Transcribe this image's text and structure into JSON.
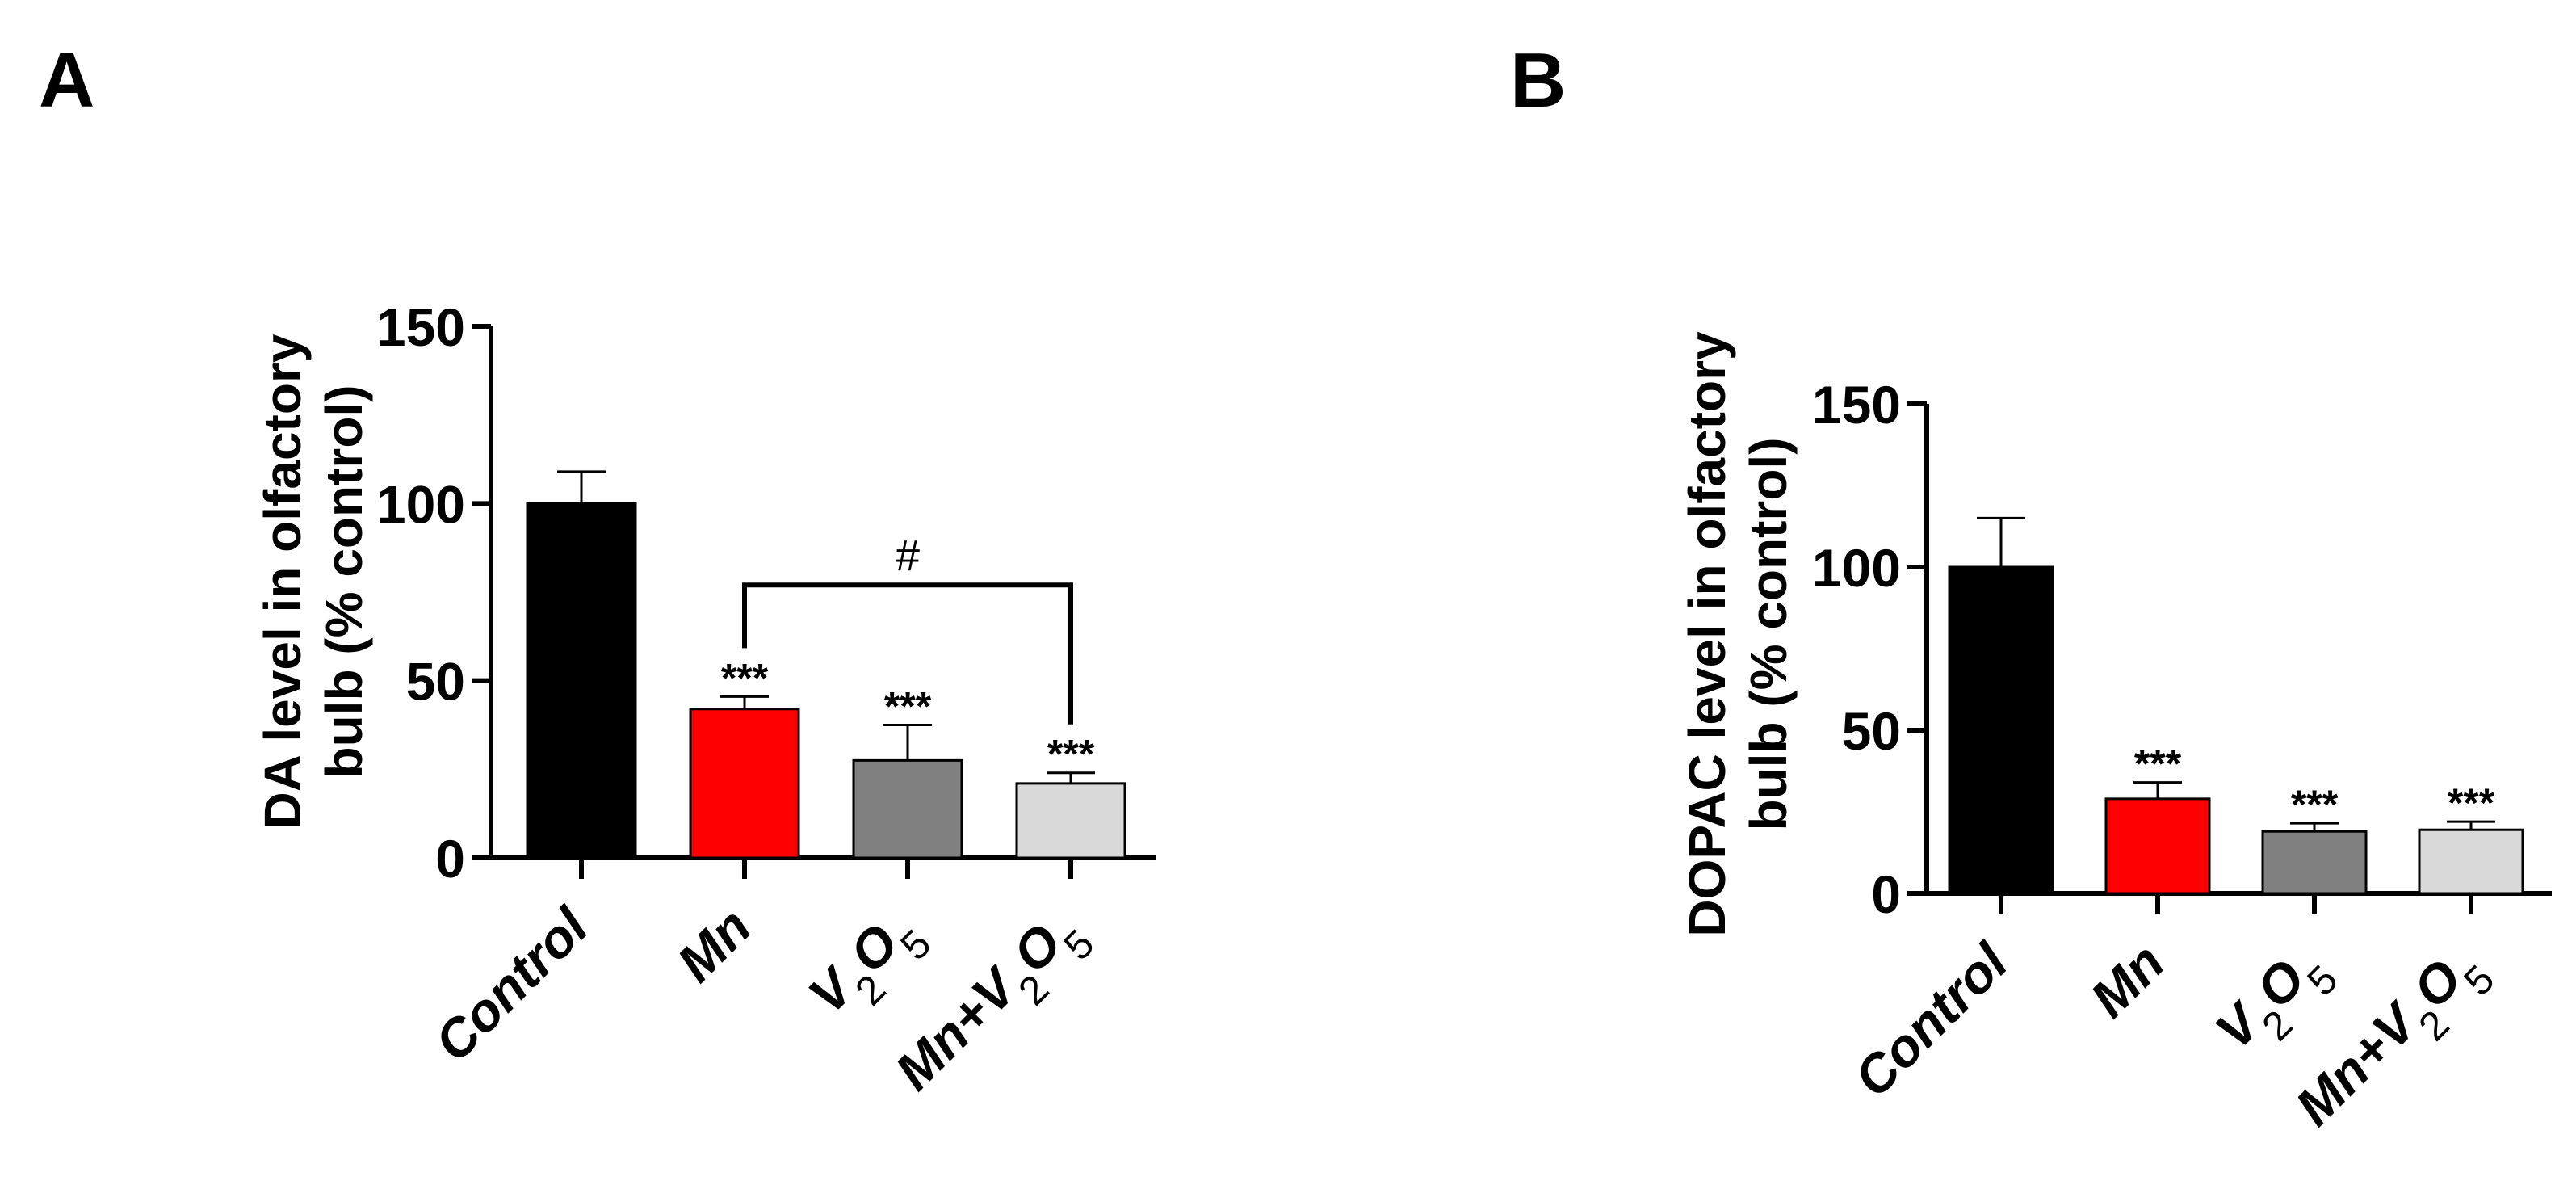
{
  "panel_labels": [
    "A",
    "B"
  ],
  "chart_data": [
    {
      "type": "bar",
      "panel": "A",
      "title": "",
      "ylabel_line1": "DA level in olfactory",
      "ylabel_line2": "bulb (% control)",
      "xlabel": "",
      "ylim": [
        0,
        150
      ],
      "yticks": [
        0,
        50,
        100,
        150
      ],
      "categories": [
        "Control",
        "Mn",
        "V2O5",
        "Mn+V2O5"
      ],
      "category_labels": [
        {
          "parts": [
            {
              "t": "Control",
              "sub": false
            }
          ]
        },
        {
          "parts": [
            {
              "t": "Mn",
              "sub": false
            }
          ]
        },
        {
          "parts": [
            {
              "t": "V",
              "sub": false
            },
            {
              "t": "2",
              "sub": true
            },
            {
              "t": "O",
              "sub": false
            },
            {
              "t": "5",
              "sub": true
            }
          ]
        },
        {
          "parts": [
            {
              "t": "Mn+V",
              "sub": false
            },
            {
              "t": "2",
              "sub": true
            },
            {
              "t": "O",
              "sub": false
            },
            {
              "t": "5",
              "sub": true
            }
          ]
        }
      ],
      "values": [
        100,
        42,
        27.5,
        21
      ],
      "errors": [
        9,
        3.5,
        10,
        3
      ],
      "significance": [
        "",
        "***",
        "***",
        "***"
      ],
      "bar_colors": [
        "#000000",
        "#ff0000",
        "#808080",
        "#d9d9d9"
      ],
      "comparison": {
        "from": 1,
        "to": 3,
        "label": "#",
        "y": 77
      }
    },
    {
      "type": "bar",
      "panel": "B",
      "title": "",
      "ylabel_line1": "DOPAC level in olfactory",
      "ylabel_line2": "bulb (% control)",
      "xlabel": "",
      "ylim": [
        0,
        150
      ],
      "yticks": [
        0,
        50,
        100,
        150
      ],
      "categories": [
        "Control",
        "Mn",
        "V2O5",
        "Mn+V2O5"
      ],
      "category_labels": [
        {
          "parts": [
            {
              "t": "Control",
              "sub": false
            }
          ]
        },
        {
          "parts": [
            {
              "t": "Mn",
              "sub": false
            }
          ]
        },
        {
          "parts": [
            {
              "t": "V",
              "sub": false
            },
            {
              "t": "2",
              "sub": true
            },
            {
              "t": "O",
              "sub": false
            },
            {
              "t": "5",
              "sub": true
            }
          ]
        },
        {
          "parts": [
            {
              "t": "Mn+V",
              "sub": false
            },
            {
              "t": "2",
              "sub": true
            },
            {
              "t": "O",
              "sub": false
            },
            {
              "t": "5",
              "sub": true
            }
          ]
        }
      ],
      "values": [
        100,
        29,
        19,
        19.5
      ],
      "errors": [
        15,
        5,
        2.5,
        2.5
      ],
      "significance": [
        "",
        "***",
        "***",
        "***"
      ],
      "bar_colors": [
        "#000000",
        "#ff0000",
        "#808080",
        "#d9d9d9"
      ],
      "comparison": null
    }
  ]
}
